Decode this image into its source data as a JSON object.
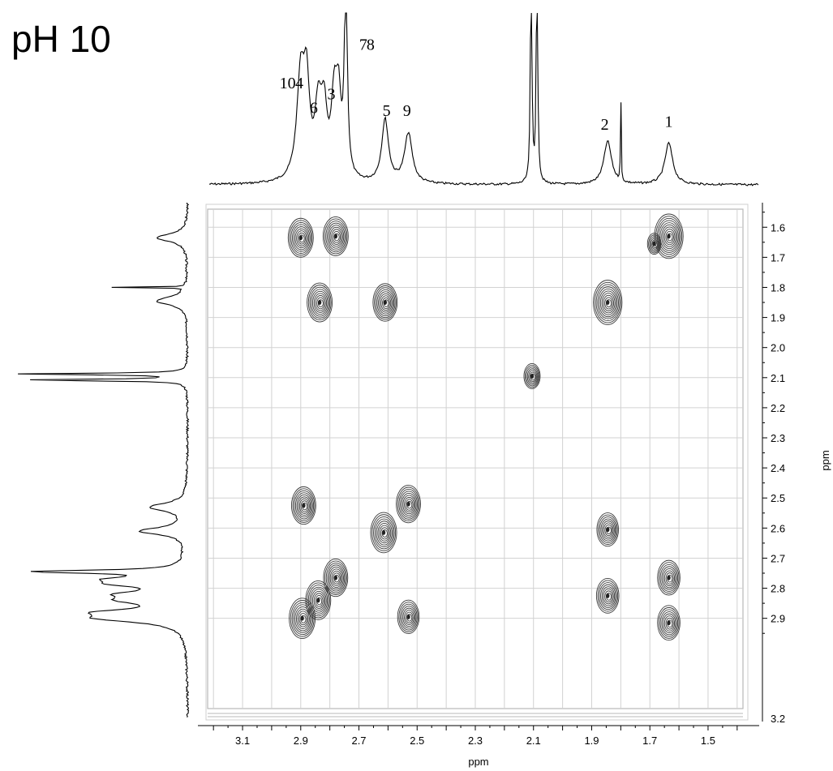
{
  "chart_data": {
    "type": "contour",
    "title": "pH 10",
    "xlabel": "ppm",
    "ylabel": "ppm",
    "x_axis": {
      "range": [
        3.22,
        1.38
      ],
      "ticks": [
        3.1,
        2.9,
        2.7,
        2.5,
        2.3,
        2.1,
        1.9,
        1.7,
        1.5
      ],
      "tick_labels": [
        "3.1",
        "2.9",
        "2.7",
        "2.5",
        "2.3",
        "2.1",
        "1.9",
        "1.7",
        "1.5"
      ]
    },
    "y_axis": {
      "range": [
        1.54,
        3.2
      ],
      "ticks": [
        1.6,
        1.7,
        1.8,
        1.9,
        2.0,
        2.1,
        2.2,
        2.3,
        2.4,
        2.5,
        2.6,
        2.7,
        2.8,
        2.9,
        3.2
      ],
      "tick_labels": [
        "1.6",
        "1.7",
        "1.8",
        "1.9",
        "2.0",
        "2.1",
        "2.2",
        "2.3",
        "2.4",
        "2.5",
        "2.6",
        "2.7",
        "2.8",
        "2.9",
        "3.2"
      ]
    },
    "grid": true,
    "peak_labels": [
      {
        "text": "10",
        "ppm": 2.945,
        "height": 0.7
      },
      {
        "text": "4",
        "ppm": 2.905,
        "height": 0.7
      },
      {
        "text": "6",
        "ppm": 2.855,
        "height": 0.52
      },
      {
        "text": "3",
        "ppm": 2.795,
        "height": 0.62
      },
      {
        "text": "7",
        "ppm": 2.685,
        "height": 0.98
      },
      {
        "text": "8",
        "ppm": 2.66,
        "height": 0.98
      },
      {
        "text": "5",
        "ppm": 2.605,
        "height": 0.5
      },
      {
        "text": "9",
        "ppm": 2.535,
        "height": 0.5
      },
      {
        "text": "2",
        "ppm": 1.855,
        "height": 0.4
      },
      {
        "text": "1",
        "ppm": 1.635,
        "height": 0.42
      }
    ],
    "spectrum_1d": [
      {
        "ppm": 2.9,
        "height": 0.62,
        "width": 0.016
      },
      {
        "ppm": 2.88,
        "height": 0.5,
        "width": 0.012
      },
      {
        "ppm": 2.84,
        "height": 0.4,
        "width": 0.014
      },
      {
        "ppm": 2.82,
        "height": 0.38,
        "width": 0.012
      },
      {
        "ppm": 2.785,
        "height": 0.46,
        "width": 0.012
      },
      {
        "ppm": 2.77,
        "height": 0.42,
        "width": 0.01
      },
      {
        "ppm": 2.745,
        "height": 1.2,
        "width": 0.006
      },
      {
        "ppm": 2.61,
        "height": 0.38,
        "width": 0.014
      },
      {
        "ppm": 2.53,
        "height": 0.3,
        "width": 0.016
      },
      {
        "ppm": 2.108,
        "height": 1.4,
        "width": 0.003
      },
      {
        "ppm": 2.088,
        "height": 1.4,
        "width": 0.003
      },
      {
        "ppm": 1.845,
        "height": 0.26,
        "width": 0.016
      },
      {
        "ppm": 1.8,
        "height": 0.62,
        "width": 0.0012
      },
      {
        "ppm": 1.635,
        "height": 0.25,
        "width": 0.016
      }
    ],
    "cross_peaks": [
      {
        "x": 2.9,
        "y": 1.635,
        "size": 1.0
      },
      {
        "x": 2.78,
        "y": 1.63,
        "size": 1.0
      },
      {
        "x": 1.635,
        "y": 1.63,
        "size": 1.2
      },
      {
        "x": 1.685,
        "y": 1.655,
        "size": 0.35
      },
      {
        "x": 2.835,
        "y": 1.85,
        "size": 1.0
      },
      {
        "x": 2.61,
        "y": 1.85,
        "size": 0.95
      },
      {
        "x": 1.845,
        "y": 1.85,
        "size": 1.2
      },
      {
        "x": 2.105,
        "y": 2.095,
        "size": 0.5
      },
      {
        "x": 2.89,
        "y": 2.525,
        "size": 0.95
      },
      {
        "x": 2.53,
        "y": 2.52,
        "size": 0.95
      },
      {
        "x": 2.615,
        "y": 2.615,
        "size": 1.05
      },
      {
        "x": 1.845,
        "y": 2.605,
        "size": 0.8
      },
      {
        "x": 2.78,
        "y": 2.765,
        "size": 0.95
      },
      {
        "x": 2.84,
        "y": 2.84,
        "size": 1.0
      },
      {
        "x": 2.895,
        "y": 2.9,
        "size": 1.05
      },
      {
        "x": 2.53,
        "y": 2.895,
        "size": 0.8
      },
      {
        "x": 1.845,
        "y": 2.825,
        "size": 0.85
      },
      {
        "x": 1.635,
        "y": 2.765,
        "size": 0.85
      },
      {
        "x": 1.635,
        "y": 2.915,
        "size": 0.85
      }
    ]
  }
}
